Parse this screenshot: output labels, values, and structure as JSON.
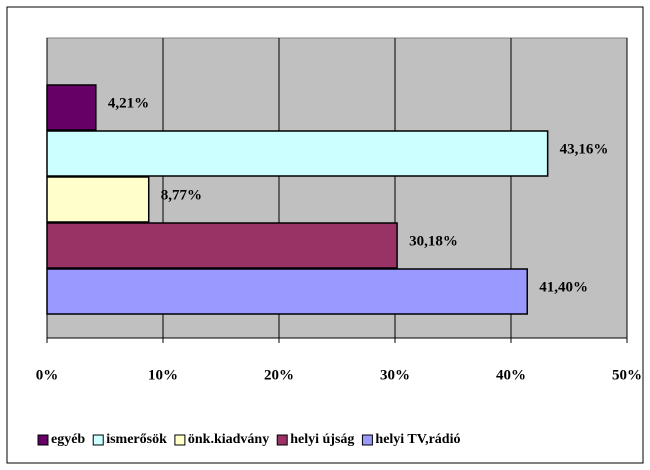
{
  "chart_data": {
    "type": "hbar",
    "categories": [
      null
    ],
    "series": [
      {
        "name": "egyéb",
        "color": "#660066",
        "values": [
          4.21
        ],
        "value_labels": [
          "4,21%"
        ]
      },
      {
        "name": "ismerősök",
        "color": "#ccffff",
        "values": [
          43.16
        ],
        "value_labels": [
          "43,16%"
        ]
      },
      {
        "name": "önk.kiadvány",
        "color": "#ffffcc",
        "values": [
          8.77
        ],
        "value_labels": [
          "8,77%"
        ]
      },
      {
        "name": "helyi újság",
        "color": "#993366",
        "values": [
          30.18
        ],
        "value_labels": [
          "30,18%"
        ]
      },
      {
        "name": "helyi TV,rádió",
        "color": "#9999ff",
        "values": [
          41.4
        ],
        "value_labels": [
          "41,40%"
        ]
      }
    ],
    "xlim": [
      0,
      50
    ],
    "xticks": [
      {
        "value": 0,
        "label": "0%"
      },
      {
        "value": 10,
        "label": "10%"
      },
      {
        "value": 20,
        "label": "20%"
      },
      {
        "value": 30,
        "label": "30%"
      },
      {
        "value": 40,
        "label": "40%"
      },
      {
        "value": 50,
        "label": "50%"
      }
    ],
    "grid": true,
    "plot_background": "#c0c0c0",
    "legend": "bottom"
  }
}
